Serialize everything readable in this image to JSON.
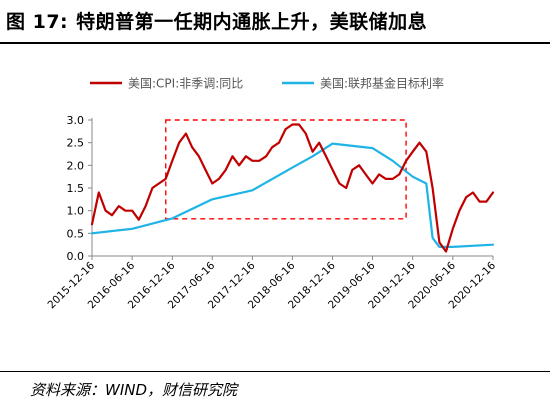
{
  "header": {
    "figure_label": "图 17:",
    "title_text": "特朗普第一任期内通胀上升，美联储加息"
  },
  "footer": {
    "source": "资料来源：WIND，财信研究院"
  },
  "chart_data": {
    "type": "line",
    "title": "",
    "xlabel": "",
    "ylabel": "",
    "xlim": [
      "2015-12-16",
      "2020-12-16"
    ],
    "ylim": [
      0,
      3.0
    ],
    "yticks": [
      0.0,
      0.5,
      1.0,
      1.5,
      2.0,
      2.5,
      3.0
    ],
    "ytick_labels": [
      "0.0",
      "0.5",
      "1.0",
      "1.5",
      "2.0",
      "2.5",
      "3.0"
    ],
    "xticks": [
      "2015-12-16",
      "2016-06-16",
      "2016-12-16",
      "2017-06-16",
      "2017-12-16",
      "2018-06-16",
      "2018-12-16",
      "2019-06-16",
      "2019-12-16",
      "2020-06-16",
      "2020-12-16"
    ],
    "grid": false,
    "legend_position": "top",
    "series": [
      {
        "name": "美国:CPI:非季调:同比",
        "color": "#c00000",
        "x": [
          "2015-12-16",
          "2016-01-16",
          "2016-02-16",
          "2016-03-16",
          "2016-04-16",
          "2016-05-16",
          "2016-06-16",
          "2016-07-16",
          "2016-08-16",
          "2016-09-16",
          "2016-10-16",
          "2016-11-16",
          "2016-12-16",
          "2017-01-16",
          "2017-02-16",
          "2017-03-16",
          "2017-04-16",
          "2017-05-16",
          "2017-06-16",
          "2017-07-16",
          "2017-08-16",
          "2017-09-16",
          "2017-10-16",
          "2017-11-16",
          "2017-12-16",
          "2018-01-16",
          "2018-02-16",
          "2018-03-16",
          "2018-04-16",
          "2018-05-16",
          "2018-06-16",
          "2018-07-16",
          "2018-08-16",
          "2018-09-16",
          "2018-10-16",
          "2018-11-16",
          "2018-12-16",
          "2019-01-16",
          "2019-02-16",
          "2019-03-16",
          "2019-04-16",
          "2019-05-16",
          "2019-06-16",
          "2019-07-16",
          "2019-08-16",
          "2019-09-16",
          "2019-10-16",
          "2019-11-16",
          "2019-12-16",
          "2020-01-16",
          "2020-02-16",
          "2020-03-16",
          "2020-04-16",
          "2020-05-16",
          "2020-06-16",
          "2020-07-16",
          "2020-08-16",
          "2020-09-16",
          "2020-10-16",
          "2020-11-16",
          "2020-12-16"
        ],
        "values": [
          0.7,
          1.4,
          1.0,
          0.9,
          1.1,
          1.0,
          1.0,
          0.8,
          1.1,
          1.5,
          1.6,
          1.7,
          2.1,
          2.5,
          2.7,
          2.4,
          2.2,
          1.9,
          1.6,
          1.7,
          1.9,
          2.2,
          2.0,
          2.2,
          2.1,
          2.1,
          2.2,
          2.4,
          2.5,
          2.8,
          2.9,
          2.9,
          2.7,
          2.3,
          2.5,
          2.2,
          1.9,
          1.6,
          1.5,
          1.9,
          2.0,
          1.8,
          1.6,
          1.8,
          1.7,
          1.7,
          1.8,
          2.1,
          2.3,
          2.5,
          2.3,
          1.5,
          0.3,
          0.1,
          0.6,
          1.0,
          1.3,
          1.4,
          1.2,
          1.2,
          1.4
        ]
      },
      {
        "name": "美国:联邦基金目标利率",
        "color": "#1fb3e6",
        "x": [
          "2015-12-16",
          "2016-06-16",
          "2016-12-16",
          "2017-06-16",
          "2017-12-16",
          "2018-06-16",
          "2018-09-16",
          "2018-12-16",
          "2019-06-16",
          "2019-09-16",
          "2019-12-16",
          "2020-02-16",
          "2020-03-16",
          "2020-04-16",
          "2020-06-16",
          "2020-12-16"
        ],
        "values": [
          0.5,
          0.6,
          0.83,
          1.25,
          1.45,
          1.95,
          2.2,
          2.48,
          2.38,
          2.1,
          1.75,
          1.6,
          0.4,
          0.2,
          0.2,
          0.25
        ]
      }
    ],
    "annotations": [
      {
        "type": "dashed-rectangle",
        "color": "#ff0000",
        "x_range": [
          "2016-11-16",
          "2019-11-16"
        ],
        "y_range": [
          0.82,
          3.0
        ]
      }
    ]
  }
}
